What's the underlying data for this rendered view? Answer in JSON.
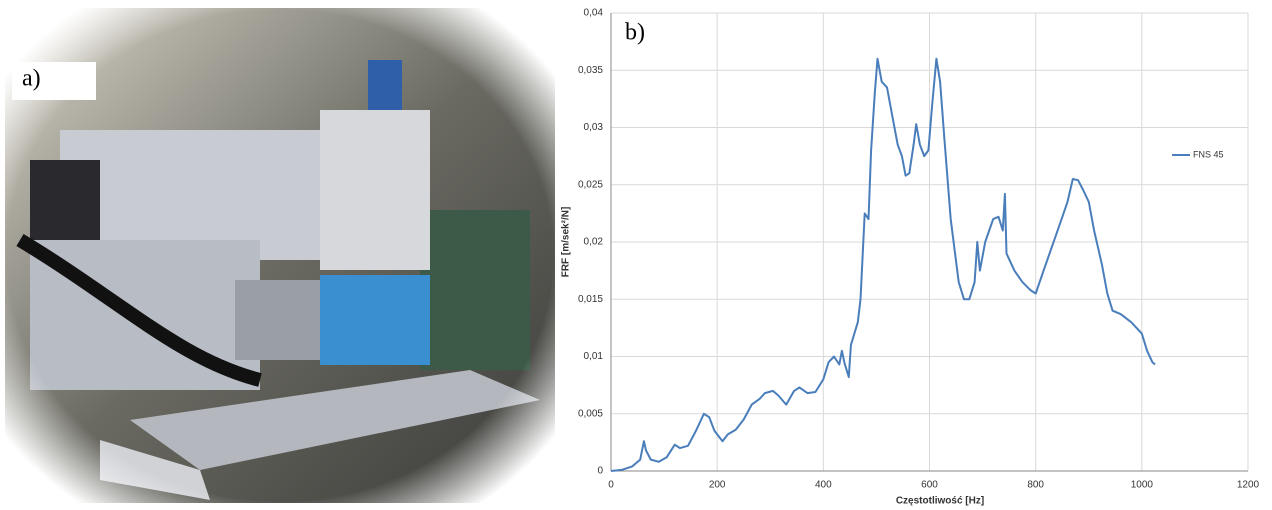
{
  "photo": {
    "label": "a)"
  },
  "chart_data": {
    "type": "line",
    "annotation": "b)",
    "xlabel": "Częstotliwość [Hz]",
    "ylabel": "FRF [m/sek²/N]",
    "xlim": [
      0,
      1200
    ],
    "xticks": [
      0,
      200,
      400,
      600,
      800,
      1000,
      1200
    ],
    "ylim": [
      0,
      0.04
    ],
    "yticks": [
      0,
      {
        "value": 0.005,
        "label": "0,005"
      },
      {
        "value": 0.01,
        "label": "0,01"
      },
      {
        "value": 0.015,
        "label": "0,015"
      },
      {
        "value": 0.02,
        "label": "0,02"
      },
      {
        "value": 0.025,
        "label": "0,025"
      },
      {
        "value": 0.03,
        "label": "0,03"
      },
      {
        "value": 0.035,
        "label": "0,035"
      },
      {
        "value": 0.04,
        "label": "0,04"
      }
    ],
    "grid": true,
    "legend": "right",
    "x": [
      0,
      20,
      40,
      55,
      62,
      66,
      75,
      90,
      105,
      120,
      130,
      145,
      160,
      175,
      185,
      195,
      210,
      220,
      235,
      250,
      265,
      280,
      290,
      305,
      315,
      330,
      345,
      355,
      370,
      385,
      400,
      410,
      420,
      430,
      435,
      440,
      448,
      452,
      465,
      470,
      478,
      485,
      490,
      497,
      502,
      510,
      520,
      530,
      540,
      548,
      555,
      562,
      570,
      575,
      582,
      590,
      598,
      605,
      613,
      620,
      628,
      640,
      655,
      665,
      675,
      685,
      690,
      695,
      705,
      720,
      730,
      738,
      742,
      745,
      760,
      775,
      790,
      800,
      815,
      830,
      845,
      860,
      870,
      880,
      890,
      900,
      910,
      925,
      935,
      945,
      960,
      980,
      1000,
      1010,
      1020,
      1025
    ],
    "series": [
      {
        "name": "FNS 45",
        "color": "#4a7ebb",
        "values": [
          0,
          0.0001,
          0.0004,
          0.001,
          0.0026,
          0.0018,
          0.001,
          0.0008,
          0.0012,
          0.0023,
          0.002,
          0.0022,
          0.0035,
          0.005,
          0.0047,
          0.0035,
          0.0026,
          0.0032,
          0.0036,
          0.0045,
          0.0058,
          0.0063,
          0.0068,
          0.007,
          0.0066,
          0.0058,
          0.007,
          0.0073,
          0.0068,
          0.0069,
          0.008,
          0.0095,
          0.01,
          0.0093,
          0.0105,
          0.0094,
          0.0082,
          0.011,
          0.013,
          0.015,
          0.0225,
          0.022,
          0.028,
          0.033,
          0.036,
          0.034,
          0.0335,
          0.031,
          0.0285,
          0.0275,
          0.0258,
          0.026,
          0.0285,
          0.0303,
          0.0285,
          0.0275,
          0.028,
          0.032,
          0.036,
          0.034,
          0.029,
          0.022,
          0.0165,
          0.015,
          0.015,
          0.0165,
          0.02,
          0.0175,
          0.02,
          0.022,
          0.0222,
          0.021,
          0.0242,
          0.019,
          0.0175,
          0.0165,
          0.0158,
          0.0155,
          0.0175,
          0.0195,
          0.0215,
          0.0235,
          0.0255,
          0.0254,
          0.0245,
          0.0235,
          0.021,
          0.018,
          0.0155,
          0.014,
          0.0137,
          0.013,
          0.012,
          0.0105,
          0.0095,
          0.0093
        ]
      }
    ]
  }
}
